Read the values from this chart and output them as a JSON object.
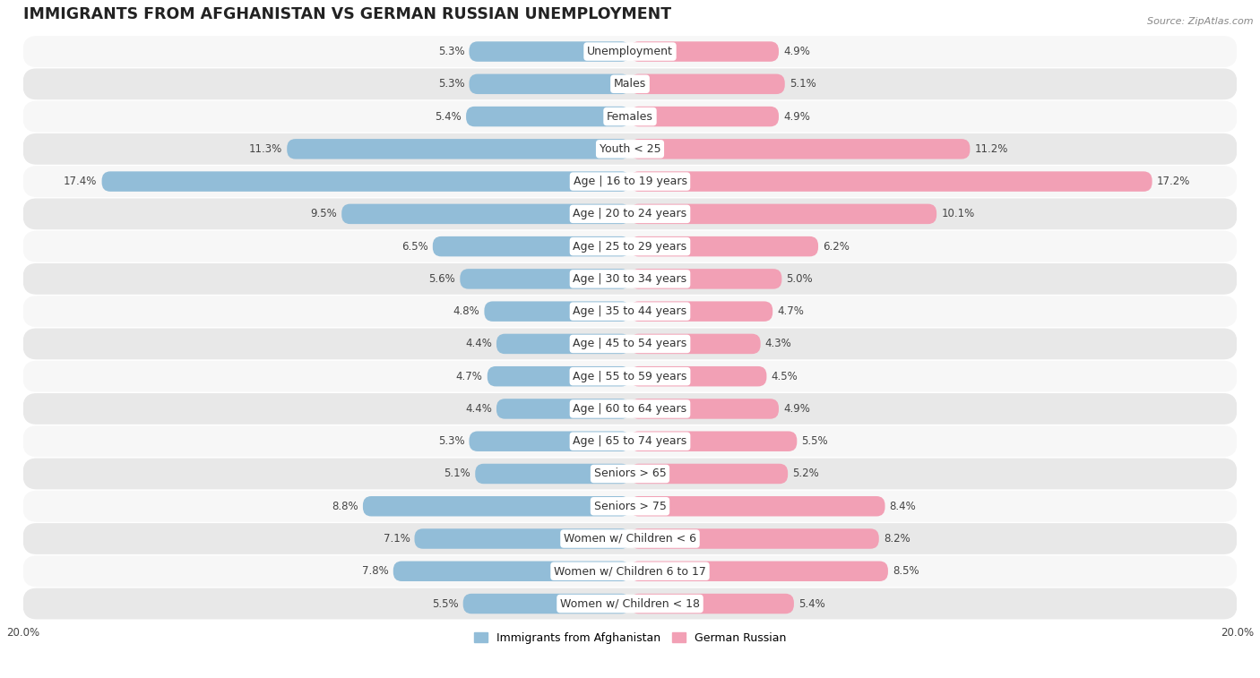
{
  "title": "IMMIGRANTS FROM AFGHANISTAN VS GERMAN RUSSIAN UNEMPLOYMENT",
  "source": "Source: ZipAtlas.com",
  "categories": [
    "Unemployment",
    "Males",
    "Females",
    "Youth < 25",
    "Age | 16 to 19 years",
    "Age | 20 to 24 years",
    "Age | 25 to 29 years",
    "Age | 30 to 34 years",
    "Age | 35 to 44 years",
    "Age | 45 to 54 years",
    "Age | 55 to 59 years",
    "Age | 60 to 64 years",
    "Age | 65 to 74 years",
    "Seniors > 65",
    "Seniors > 75",
    "Women w/ Children < 6",
    "Women w/ Children 6 to 17",
    "Women w/ Children < 18"
  ],
  "afghanistan_values": [
    5.3,
    5.3,
    5.4,
    11.3,
    17.4,
    9.5,
    6.5,
    5.6,
    4.8,
    4.4,
    4.7,
    4.4,
    5.3,
    5.1,
    8.8,
    7.1,
    7.8,
    5.5
  ],
  "german_russian_values": [
    4.9,
    5.1,
    4.9,
    11.2,
    17.2,
    10.1,
    6.2,
    5.0,
    4.7,
    4.3,
    4.5,
    4.9,
    5.5,
    5.2,
    8.4,
    8.2,
    8.5,
    5.4
  ],
  "afghanistan_color": "#92bdd8",
  "german_russian_color": "#f2a0b5",
  "bar_height": 0.62,
  "xlim": 20.0,
  "bg_color": "#ffffff",
  "row_color_light": "#f7f7f7",
  "row_color_dark": "#e8e8e8",
  "title_fontsize": 12.5,
  "label_fontsize": 9,
  "value_fontsize": 8.5,
  "legend_fontsize": 9,
  "source_fontsize": 8
}
